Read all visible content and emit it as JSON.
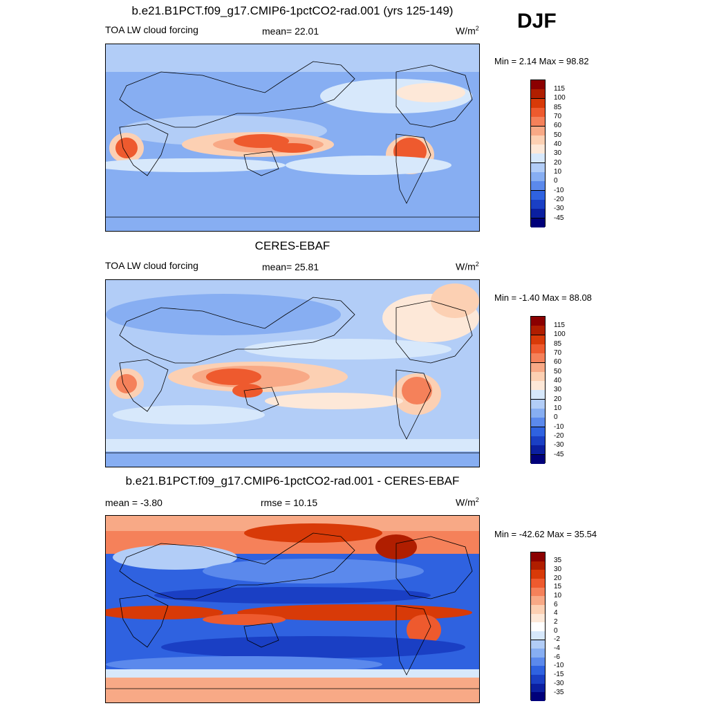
{
  "season": "DJF",
  "panels": [
    {
      "title": "b.e21.B1PCT.f09_g17.CMIP6-1pctCO2-rad.001 (yrs 125-149)",
      "left_label": "TOA LW cloud forcing",
      "center_label": "mean=  22.01",
      "units": "W/m",
      "units_sup": "2",
      "minmax": "Min =   2.14 Max =  98.82",
      "colorbar": {
        "labels": [
          "115",
          "100",
          "85",
          "70",
          "60",
          "50",
          "40",
          "30",
          "20",
          "10",
          "0",
          "-10",
          "-20",
          "-30",
          "-45"
        ],
        "colors": [
          "#8b0000",
          "#b01e00",
          "#d83a08",
          "#ee5a2e",
          "#f5815a",
          "#f8a986",
          "#fcd0b3",
          "#fde8d8",
          "#d7e8fb",
          "#b2cdf7",
          "#87aef2",
          "#5b89ec",
          "#2f62e0",
          "#1a3fc4",
          "#0b1fa0",
          "#00007a"
        ]
      },
      "legend_highlight": "#00007a"
    },
    {
      "title": "CERES-EBAF",
      "left_label": "TOA LW cloud forcing",
      "center_label": "mean=  25.81",
      "units": "W/m",
      "units_sup": "2",
      "minmax": "Min =  -1.40 Max =  88.08",
      "colorbar": {
        "labels": [
          "115",
          "100",
          "85",
          "70",
          "60",
          "50",
          "40",
          "30",
          "20",
          "10",
          "0",
          "-10",
          "-20",
          "-30",
          "-45"
        ],
        "colors": [
          "#8b0000",
          "#b01e00",
          "#d83a08",
          "#ee5a2e",
          "#f5815a",
          "#f8a986",
          "#fcd0b3",
          "#fde8d8",
          "#d7e8fb",
          "#b2cdf7",
          "#87aef2",
          "#5b89ec",
          "#2f62e0",
          "#1a3fc4",
          "#0b1fa0",
          "#00007a"
        ]
      }
    },
    {
      "title": "b.e21.B1PCT.f09_g17.CMIP6-1pctCO2-rad.001 - CERES-EBAF",
      "left_label": "mean =  -3.80",
      "center_label": "rmse =  10.15",
      "units": "W/m",
      "units_sup": "2",
      "minmax": "Min = -42.62 Max =  35.54",
      "colorbar": {
        "labels": [
          "35",
          "30",
          "20",
          "15",
          "10",
          "6",
          "4",
          "2",
          "0",
          "-2",
          "-4",
          "-6",
          "-10",
          "-15",
          "-30",
          "-35"
        ],
        "colors": [
          "#8b0000",
          "#b01e00",
          "#d83a08",
          "#ee5a2e",
          "#f5815a",
          "#f8a986",
          "#fcd0b3",
          "#fde8d8",
          "#ffffff",
          "#d7e8fb",
          "#b2cdf7",
          "#87aef2",
          "#5b89ec",
          "#2f62e0",
          "#1a3fc4",
          "#0b1fa0",
          "#00007a"
        ]
      }
    }
  ]
}
